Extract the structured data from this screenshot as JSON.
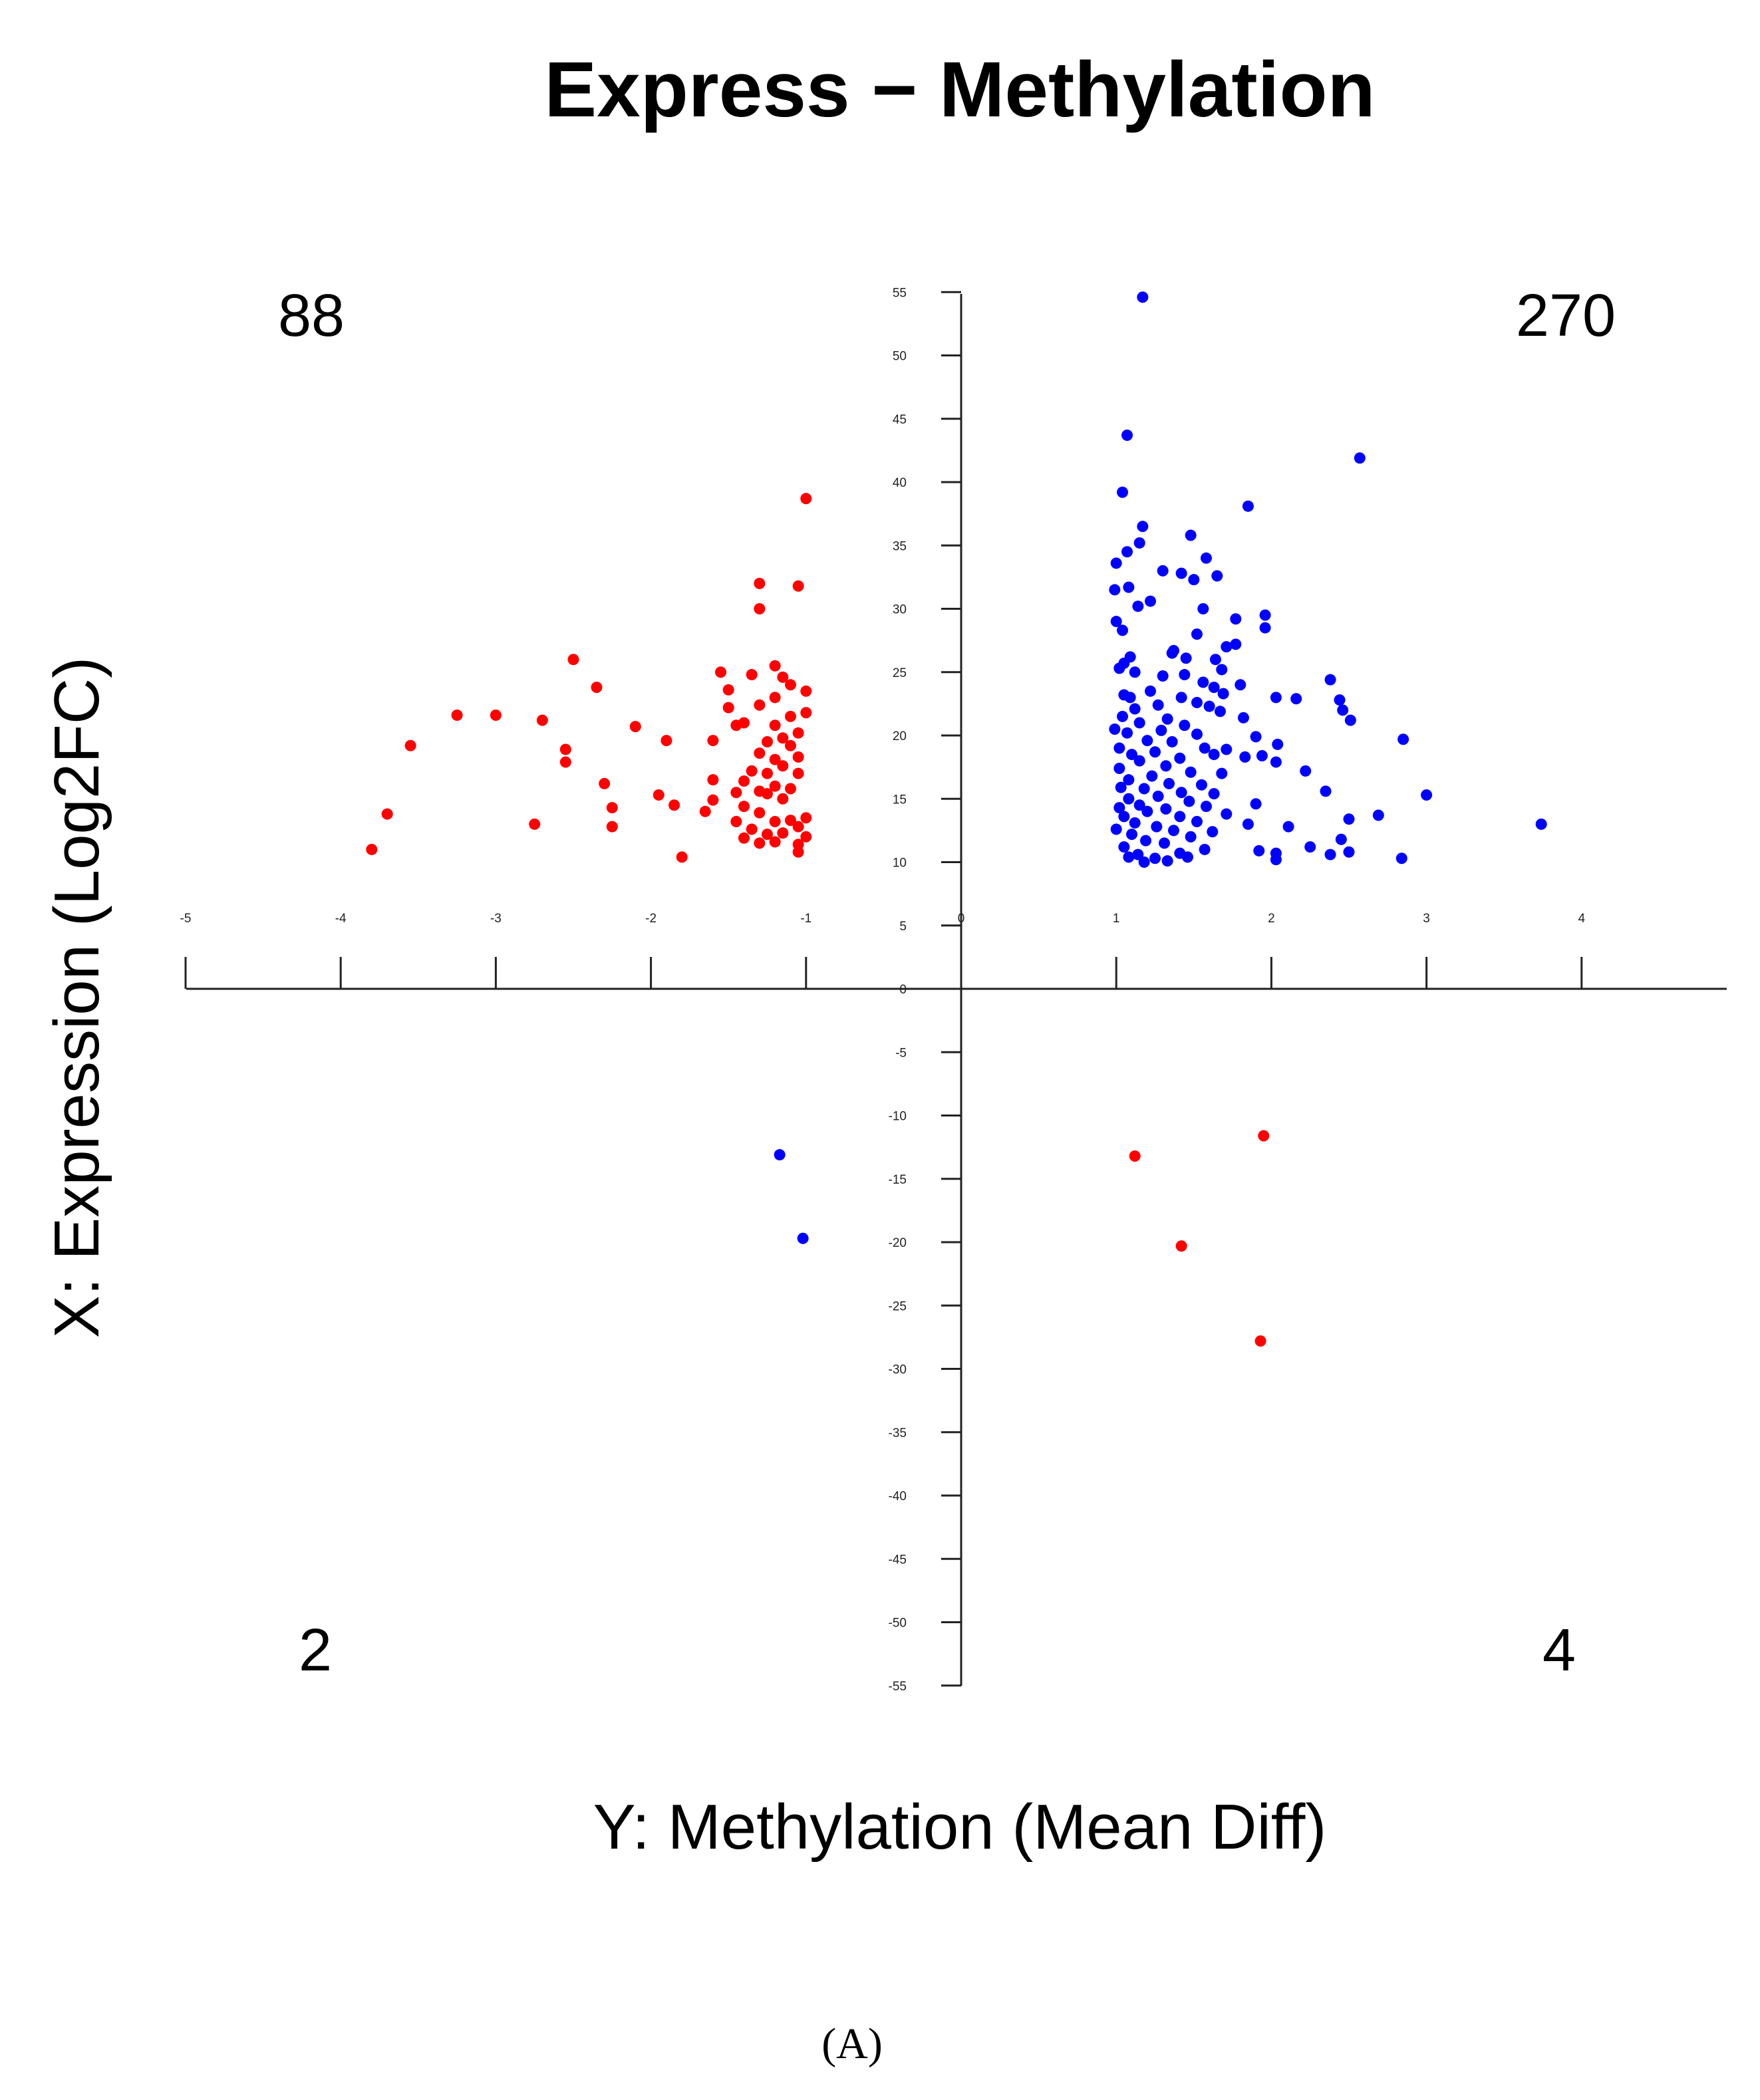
{
  "chart_data": {
    "type": "scatter",
    "title": "Express − Methylation",
    "xlabel": "Y: Methylation (Mean Diff)",
    "ylabel": "X: Expression (Log2FC)",
    "panel_label": "(A)",
    "xlim": [
      -5,
      5
    ],
    "ylim": [
      -55,
      55
    ],
    "x_ticks": [
      -5,
      -4,
      -3,
      -2,
      -1,
      0,
      1,
      2,
      3,
      4
    ],
    "y_ticks": [
      55,
      50,
      45,
      40,
      35,
      30,
      25,
      20,
      15,
      10,
      5,
      0,
      -5,
      -10,
      -15,
      -20,
      -25,
      -30,
      -35,
      -40,
      -45,
      -50,
      -55
    ],
    "quadrant_counts": {
      "top_left": "88",
      "top_right": "270",
      "bottom_left": "2",
      "bottom_right": "4"
    },
    "series": [
      {
        "name": "red",
        "color": "#ff0000",
        "points": [
          [
            -1.0,
            38.7
          ],
          [
            -1.3,
            32.0
          ],
          [
            -1.05,
            31.8
          ],
          [
            -1.3,
            30.0
          ],
          [
            -2.5,
            26.0
          ],
          [
            -1.2,
            25.5
          ],
          [
            -1.55,
            25.0
          ],
          [
            -1.35,
            24.8
          ],
          [
            -1.15,
            24.6
          ],
          [
            -1.1,
            24.0
          ],
          [
            -2.35,
            23.8
          ],
          [
            -1.0,
            23.5
          ],
          [
            -1.5,
            23.6
          ],
          [
            -1.2,
            23.0
          ],
          [
            -1.3,
            22.4
          ],
          [
            -1.5,
            22.2
          ],
          [
            -3.25,
            21.6
          ],
          [
            -3.0,
            21.6
          ],
          [
            -1.0,
            21.8
          ],
          [
            -1.1,
            21.5
          ],
          [
            -2.7,
            21.2
          ],
          [
            -1.4,
            21.0
          ],
          [
            -1.45,
            20.8
          ],
          [
            -1.2,
            20.8
          ],
          [
            -2.1,
            20.7
          ],
          [
            -1.05,
            20.2
          ],
          [
            -1.15,
            19.8
          ],
          [
            -1.9,
            19.6
          ],
          [
            -1.6,
            19.6
          ],
          [
            -1.25,
            19.5
          ],
          [
            -3.55,
            19.2
          ],
          [
            -1.1,
            19.2
          ],
          [
            -2.55,
            18.9
          ],
          [
            -1.3,
            18.6
          ],
          [
            -1.05,
            18.3
          ],
          [
            -1.2,
            18.1
          ],
          [
            -2.55,
            17.9
          ],
          [
            -1.15,
            17.6
          ],
          [
            -1.35,
            17.2
          ],
          [
            -1.25,
            17.0
          ],
          [
            -1.05,
            17.0
          ],
          [
            -1.6,
            16.5
          ],
          [
            -1.4,
            16.4
          ],
          [
            -2.3,
            16.2
          ],
          [
            -1.2,
            16.0
          ],
          [
            -1.1,
            15.8
          ],
          [
            -1.3,
            15.6
          ],
          [
            -1.45,
            15.5
          ],
          [
            -1.25,
            15.4
          ],
          [
            -1.95,
            15.3
          ],
          [
            -1.15,
            15.0
          ],
          [
            -1.6,
            14.9
          ],
          [
            -1.85,
            14.5
          ],
          [
            -1.4,
            14.4
          ],
          [
            -2.25,
            14.3
          ],
          [
            -1.65,
            14.0
          ],
          [
            -1.3,
            13.9
          ],
          [
            -3.7,
            13.8
          ],
          [
            -1.0,
            13.5
          ],
          [
            -1.1,
            13.3
          ],
          [
            -1.2,
            13.2
          ],
          [
            -1.45,
            13.2
          ],
          [
            -2.75,
            13.0
          ],
          [
            -2.25,
            12.8
          ],
          [
            -1.05,
            12.8
          ],
          [
            -1.35,
            12.6
          ],
          [
            -1.15,
            12.3
          ],
          [
            -1.25,
            12.2
          ],
          [
            -1.0,
            12.0
          ],
          [
            -1.4,
            11.9
          ],
          [
            -1.2,
            11.6
          ],
          [
            -1.3,
            11.5
          ],
          [
            -1.05,
            11.4
          ],
          [
            -3.8,
            11.0
          ],
          [
            -1.05,
            10.8
          ],
          [
            -1.8,
            10.4
          ],
          [
            1.12,
            -13.2
          ],
          [
            1.95,
            -11.6
          ],
          [
            1.42,
            -20.3
          ],
          [
            1.93,
            -27.8
          ]
        ]
      },
      {
        "name": "blue",
        "color": "#0000ff",
        "points": [
          [
            1.17,
            54.6
          ],
          [
            1.07,
            43.7
          ],
          [
            2.57,
            41.9
          ],
          [
            1.04,
            39.2
          ],
          [
            1.85,
            38.1
          ],
          [
            1.17,
            36.5
          ],
          [
            1.48,
            35.8
          ],
          [
            1.15,
            35.2
          ],
          [
            1.07,
            34.5
          ],
          [
            1.58,
            34.0
          ],
          [
            1.0,
            33.6
          ],
          [
            1.3,
            33.0
          ],
          [
            1.42,
            32.8
          ],
          [
            1.65,
            32.6
          ],
          [
            1.5,
            32.3
          ],
          [
            1.08,
            31.7
          ],
          [
            0.99,
            31.5
          ],
          [
            1.22,
            30.6
          ],
          [
            1.14,
            30.2
          ],
          [
            1.56,
            30.0
          ],
          [
            1.96,
            29.5
          ],
          [
            1.0,
            29.0
          ],
          [
            1.77,
            29.2
          ],
          [
            1.96,
            28.5
          ],
          [
            1.04,
            28.3
          ],
          [
            1.52,
            28.0
          ],
          [
            1.77,
            27.2
          ],
          [
            1.71,
            27.0
          ],
          [
            1.37,
            26.7
          ],
          [
            1.36,
            26.5
          ],
          [
            1.09,
            26.2
          ],
          [
            1.45,
            26.1
          ],
          [
            1.64,
            26.0
          ],
          [
            1.05,
            25.7
          ],
          [
            1.02,
            25.3
          ],
          [
            1.12,
            25.0
          ],
          [
            1.68,
            25.2
          ],
          [
            1.3,
            24.7
          ],
          [
            1.44,
            24.8
          ],
          [
            2.38,
            24.4
          ],
          [
            1.56,
            24.2
          ],
          [
            1.8,
            24.0
          ],
          [
            1.63,
            23.8
          ],
          [
            1.22,
            23.5
          ],
          [
            1.69,
            23.3
          ],
          [
            1.05,
            23.2
          ],
          [
            1.09,
            23.0
          ],
          [
            1.42,
            23.0
          ],
          [
            2.03,
            23.0
          ],
          [
            2.16,
            22.9
          ],
          [
            2.44,
            22.8
          ],
          [
            1.52,
            22.6
          ],
          [
            1.27,
            22.4
          ],
          [
            1.6,
            22.3
          ],
          [
            1.12,
            22.1
          ],
          [
            2.46,
            22.0
          ],
          [
            1.67,
            21.9
          ],
          [
            1.04,
            21.5
          ],
          [
            1.33,
            21.3
          ],
          [
            1.82,
            21.4
          ],
          [
            2.51,
            21.2
          ],
          [
            1.15,
            21.0
          ],
          [
            1.44,
            20.8
          ],
          [
            0.99,
            20.5
          ],
          [
            1.29,
            20.4
          ],
          [
            1.07,
            20.2
          ],
          [
            1.52,
            20.1
          ],
          [
            1.9,
            19.9
          ],
          [
            2.85,
            19.7
          ],
          [
            1.2,
            19.6
          ],
          [
            1.36,
            19.5
          ],
          [
            2.04,
            19.3
          ],
          [
            1.02,
            19.0
          ],
          [
            1.57,
            19.0
          ],
          [
            1.71,
            18.9
          ],
          [
            1.25,
            18.7
          ],
          [
            1.1,
            18.5
          ],
          [
            1.63,
            18.5
          ],
          [
            1.94,
            18.4
          ],
          [
            1.83,
            18.3
          ],
          [
            1.41,
            18.2
          ],
          [
            1.15,
            18.0
          ],
          [
            2.03,
            17.9
          ],
          [
            1.32,
            17.6
          ],
          [
            1.02,
            17.4
          ],
          [
            2.22,
            17.2
          ],
          [
            1.48,
            17.1
          ],
          [
            1.68,
            17.0
          ],
          [
            1.23,
            16.8
          ],
          [
            1.08,
            16.5
          ],
          [
            1.34,
            16.2
          ],
          [
            1.55,
            16.1
          ],
          [
            1.03,
            15.9
          ],
          [
            1.18,
            15.8
          ],
          [
            2.35,
            15.6
          ],
          [
            1.42,
            15.5
          ],
          [
            1.63,
            15.4
          ],
          [
            3.0,
            15.3
          ],
          [
            1.27,
            15.2
          ],
          [
            1.08,
            15.0
          ],
          [
            1.47,
            14.8
          ],
          [
            1.9,
            14.6
          ],
          [
            1.15,
            14.5
          ],
          [
            1.58,
            14.4
          ],
          [
            1.02,
            14.3
          ],
          [
            1.32,
            14.2
          ],
          [
            1.2,
            14.0
          ],
          [
            1.71,
            13.8
          ],
          [
            2.69,
            13.7
          ],
          [
            1.05,
            13.6
          ],
          [
            1.41,
            13.6
          ],
          [
            2.5,
            13.4
          ],
          [
            1.52,
            13.2
          ],
          [
            1.12,
            13.1
          ],
          [
            1.85,
            13.0
          ],
          [
            3.74,
            13.0
          ],
          [
            1.26,
            12.8
          ],
          [
            2.11,
            12.8
          ],
          [
            1.0,
            12.6
          ],
          [
            1.37,
            12.5
          ],
          [
            1.62,
            12.4
          ],
          [
            1.1,
            12.2
          ],
          [
            1.48,
            12.0
          ],
          [
            2.45,
            11.8
          ],
          [
            1.19,
            11.7
          ],
          [
            1.31,
            11.5
          ],
          [
            2.25,
            11.2
          ],
          [
            1.05,
            11.2
          ],
          [
            1.57,
            11.0
          ],
          [
            1.92,
            10.9
          ],
          [
            2.5,
            10.8
          ],
          [
            1.41,
            10.7
          ],
          [
            2.03,
            10.7
          ],
          [
            1.14,
            10.6
          ],
          [
            2.38,
            10.6
          ],
          [
            1.08,
            10.4
          ],
          [
            1.46,
            10.4
          ],
          [
            2.84,
            10.3
          ],
          [
            1.25,
            10.3
          ],
          [
            2.03,
            10.2
          ],
          [
            1.33,
            10.1
          ],
          [
            1.18,
            10.0
          ],
          [
            -1.17,
            -13.1
          ],
          [
            -1.02,
            -19.7
          ]
        ]
      }
    ]
  }
}
